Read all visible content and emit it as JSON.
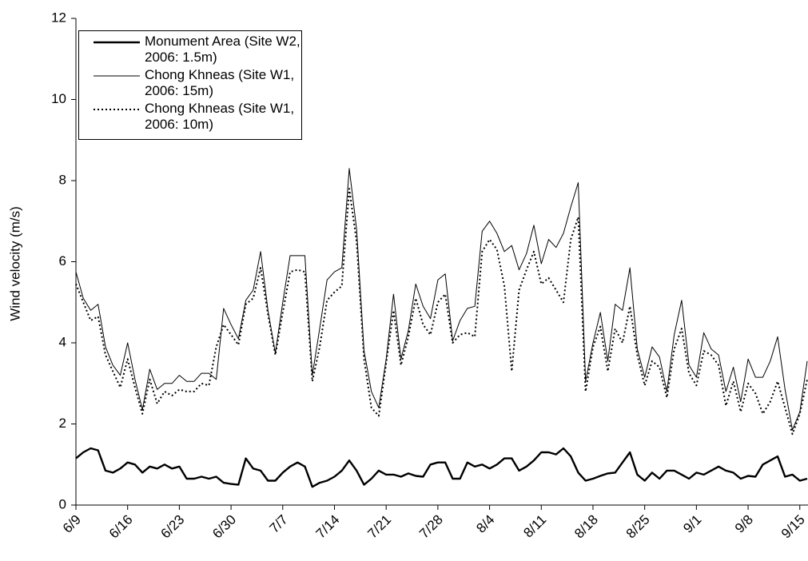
{
  "chart_data": {
    "type": "line",
    "y_label": "Wind velocity (m/s)",
    "categories": [
      "6/9",
      null,
      null,
      null,
      null,
      null,
      null,
      "6/16",
      null,
      null,
      null,
      null,
      null,
      null,
      "6/23",
      null,
      null,
      null,
      null,
      null,
      null,
      "6/30",
      null,
      null,
      null,
      null,
      null,
      null,
      "7/7",
      null,
      null,
      null,
      null,
      null,
      null,
      "7/14",
      null,
      null,
      null,
      null,
      null,
      null,
      "7/21",
      null,
      null,
      null,
      null,
      null,
      null,
      "7/28",
      null,
      null,
      null,
      null,
      null,
      null,
      "8/4",
      null,
      null,
      null,
      null,
      null,
      null,
      "8/11",
      null,
      null,
      null,
      null,
      null,
      null,
      "8/18",
      null,
      null,
      null,
      null,
      null,
      null,
      "8/25",
      null,
      null,
      null,
      null,
      null,
      null,
      "9/1",
      null,
      null,
      null,
      null,
      null,
      null,
      "9/8",
      null,
      null,
      null,
      null,
      null,
      null,
      "9/15",
      null
    ],
    "series": [
      {
        "name": "Monument Area (Site W2, 2006: 1.5m)",
        "color": "#000000",
        "style": "bold",
        "values": [
          1.15,
          1.3,
          1.4,
          1.35,
          0.85,
          0.8,
          0.9,
          1.05,
          1.0,
          0.8,
          0.95,
          0.9,
          1.0,
          0.9,
          0.95,
          0.65,
          0.65,
          0.7,
          0.65,
          0.7,
          0.55,
          0.52,
          0.5,
          1.15,
          0.9,
          0.85,
          0.6,
          0.6,
          0.8,
          0.95,
          1.05,
          0.95,
          0.45,
          0.55,
          0.6,
          0.7,
          0.85,
          1.1,
          0.85,
          0.5,
          0.65,
          0.85,
          0.75,
          0.75,
          0.7,
          0.78,
          0.72,
          0.7,
          1.0,
          1.05,
          1.05,
          0.65,
          0.65,
          1.05,
          0.95,
          1.0,
          0.9,
          1.0,
          1.15,
          1.15,
          0.85,
          0.95,
          1.1,
          1.3,
          1.3,
          1.25,
          1.4,
          1.2,
          0.8,
          0.6,
          0.65,
          0.72,
          0.78,
          0.8,
          1.05,
          1.3,
          0.75,
          0.6,
          0.8,
          0.65,
          0.85,
          0.85,
          0.75,
          0.65,
          0.8,
          0.75,
          0.85,
          0.95,
          0.85,
          0.8,
          0.65,
          0.72,
          0.7,
          1.0,
          1.1,
          1.2,
          0.7,
          0.75,
          0.6,
          0.65
        ]
      },
      {
        "name": "Chong Khneas (Site W1, 2006: 15m)",
        "color": "#000000",
        "style": "solid",
        "values": [
          5.75,
          5.1,
          4.8,
          4.95,
          3.9,
          3.45,
          3.2,
          4.0,
          3.1,
          2.35,
          3.35,
          2.85,
          3.0,
          3.0,
          3.2,
          3.05,
          3.05,
          3.25,
          3.25,
          3.1,
          4.85,
          4.45,
          4.1,
          5.05,
          5.3,
          6.25,
          4.8,
          3.75,
          5.0,
          6.15,
          6.15,
          6.15,
          3.2,
          4.35,
          5.55,
          5.75,
          5.85,
          8.3,
          6.8,
          3.8,
          2.8,
          2.4,
          3.6,
          5.2,
          3.6,
          4.3,
          5.45,
          4.9,
          4.6,
          5.55,
          5.7,
          4.05,
          4.55,
          4.85,
          4.9,
          6.75,
          7.0,
          6.7,
          6.25,
          6.4,
          5.8,
          6.2,
          6.9,
          5.95,
          6.55,
          6.35,
          6.7,
          7.35,
          7.95,
          3.05,
          4.0,
          4.75,
          3.55,
          4.95,
          4.8,
          5.85,
          3.85,
          3.15,
          3.9,
          3.65,
          2.8,
          4.2,
          5.05,
          3.45,
          3.15,
          4.25,
          3.85,
          3.7,
          2.8,
          3.4,
          2.55,
          3.6,
          3.15,
          3.15,
          3.55,
          4.15,
          2.85,
          1.85,
          2.3,
          3.55
        ]
      },
      {
        "name": "Chong Khneas (Site W1, 2006: 10m)",
        "color": "#000000",
        "style": "dotted",
        "values": [
          5.45,
          5.0,
          4.55,
          4.65,
          3.7,
          3.3,
          2.9,
          3.6,
          2.9,
          2.25,
          3.1,
          2.5,
          2.8,
          2.7,
          2.85,
          2.8,
          2.8,
          3.0,
          2.95,
          3.9,
          4.45,
          4.2,
          3.95,
          4.95,
          5.1,
          5.85,
          4.7,
          3.7,
          4.75,
          5.75,
          5.8,
          5.75,
          3.05,
          3.9,
          5.05,
          5.25,
          5.4,
          7.8,
          6.5,
          3.6,
          2.4,
          2.2,
          3.5,
          4.8,
          3.45,
          4.15,
          5.1,
          4.45,
          4.2,
          5.0,
          5.2,
          4.0,
          4.2,
          4.25,
          4.15,
          6.25,
          6.55,
          6.3,
          5.4,
          3.3,
          5.3,
          5.8,
          6.25,
          5.45,
          5.6,
          5.3,
          5.0,
          6.55,
          7.1,
          2.8,
          3.9,
          4.4,
          3.3,
          4.35,
          4.0,
          4.9,
          3.7,
          2.95,
          3.55,
          3.4,
          2.65,
          3.85,
          4.35,
          3.25,
          2.95,
          3.8,
          3.7,
          3.45,
          2.45,
          3.05,
          2.3,
          3.0,
          2.75,
          2.25,
          2.55,
          3.05,
          2.4,
          1.75,
          2.25,
          3.1
        ]
      }
    ],
    "ylim": [
      0,
      12
    ],
    "yticks": [
      0,
      2,
      4,
      6,
      8,
      10,
      12
    ],
    "grid": false,
    "legend": "top-left"
  }
}
